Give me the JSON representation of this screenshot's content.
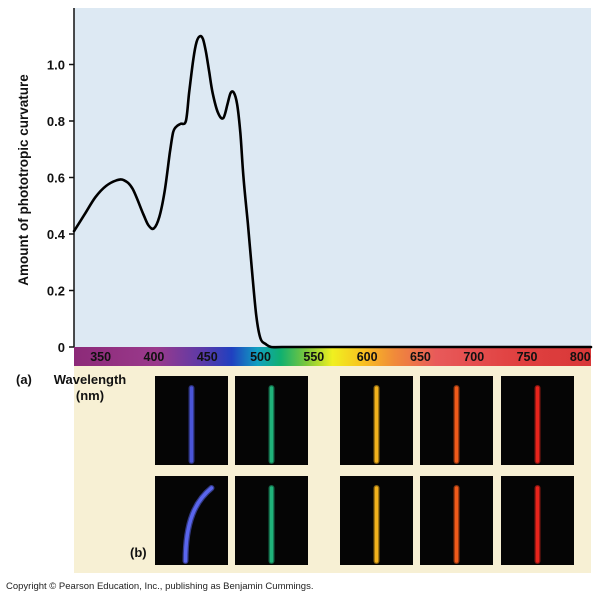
{
  "chart_data": {
    "type": "line",
    "ylabel": "Amount of phototropic curvature",
    "xlabel": "Wavelength (nm)",
    "xlim": [
      325,
      810
    ],
    "ylim": [
      0,
      1.2
    ],
    "x_ticks": [
      350,
      400,
      450,
      500,
      550,
      600,
      650,
      700,
      750,
      800
    ],
    "y_ticks": [
      0,
      0.2,
      0.4,
      0.6,
      0.8,
      1.0
    ],
    "y_tick_labels": [
      "0",
      "0.2",
      "0.4",
      "0.6",
      "0.8",
      "1.0"
    ],
    "grid": false,
    "series": [
      {
        "x": [
          325,
          335,
          345,
          355,
          365,
          372,
          380,
          390,
          395,
          400,
          405,
          410,
          415,
          418,
          421,
          425,
          430,
          433,
          437,
          440,
          443,
          446,
          449,
          452,
          455,
          460,
          465,
          469,
          472,
          475,
          478,
          481,
          484,
          488,
          492,
          496,
          500,
          505,
          510,
          520,
          550,
          600,
          700,
          810
        ],
        "values": [
          0.41,
          0.47,
          0.53,
          0.57,
          0.59,
          0.59,
          0.56,
          0.47,
          0.43,
          0.42,
          0.46,
          0.55,
          0.69,
          0.76,
          0.78,
          0.79,
          0.8,
          0.9,
          1.02,
          1.08,
          1.1,
          1.09,
          1.04,
          0.97,
          0.9,
          0.83,
          0.81,
          0.86,
          0.9,
          0.9,
          0.86,
          0.76,
          0.6,
          0.44,
          0.27,
          0.11,
          0.03,
          0.01,
          0.0,
          0.0,
          0.0,
          0.0,
          0.0,
          0.0
        ]
      }
    ]
  },
  "panel_a_label": "(a)",
  "panel_b_label": "(b)",
  "wavelength_label_line1": "Wavelength",
  "wavelength_label_line2": "(nm)",
  "copyright": "Copyright © Pearson Education, Inc., publishing as Benjamin Cummings.",
  "colors": {
    "plot_background": "#dde9f3",
    "curve": "#000000",
    "lower_panel_background": "#f7f0d4",
    "photo_background": "#050505"
  },
  "seedling_photos": [
    {
      "row": "top",
      "wavelength_nm": 436,
      "color": "#4a55d8",
      "bent": false
    },
    {
      "row": "top",
      "wavelength_nm": 500,
      "color": "#1fb37a",
      "bent": false
    },
    {
      "row": "top",
      "wavelength_nm": 600,
      "color": "#f2b21c",
      "bent": false
    },
    {
      "row": "top",
      "wavelength_nm": 650,
      "color": "#f05a1a",
      "bent": false
    },
    {
      "row": "top",
      "wavelength_nm": 700,
      "color": "#e8241c",
      "bent": false
    },
    {
      "row": "bottom",
      "wavelength_nm": 436,
      "color": "#5a66ee",
      "bent": true
    },
    {
      "row": "bottom",
      "wavelength_nm": 500,
      "color": "#1fb37a",
      "bent": false
    },
    {
      "row": "bottom",
      "wavelength_nm": 600,
      "color": "#f2b21c",
      "bent": false
    },
    {
      "row": "bottom",
      "wavelength_nm": 650,
      "color": "#f05a1a",
      "bent": false
    },
    {
      "row": "bottom",
      "wavelength_nm": 700,
      "color": "#e8241c",
      "bent": false
    }
  ]
}
